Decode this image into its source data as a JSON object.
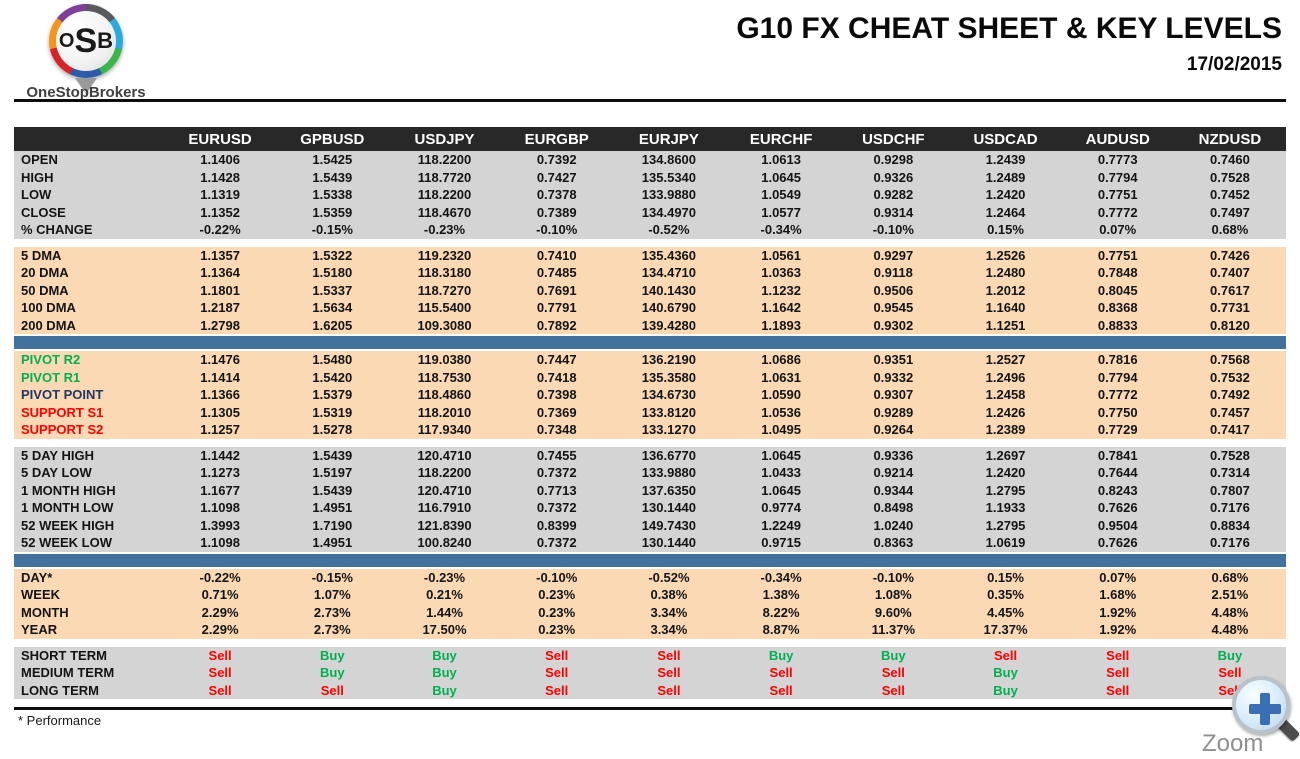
{
  "header": {
    "logo": {
      "monogram_o": "O",
      "monogram_s": "S",
      "monogram_b": "B",
      "brand": "OneStopBrokers",
      "ring_colors": [
        "#58595B",
        "#29ABE2",
        "#39B54A",
        "#2E5BA8",
        "#D92128",
        "#F7941E",
        "#7F3F98"
      ]
    },
    "title": "G10 FX CHEAT SHEET & KEY LEVELS",
    "date": "17/02/2015"
  },
  "colors": {
    "header_bg": "#282828",
    "header_text": "#ffffff",
    "gray_block": "#d4d4d4",
    "peach_block": "#fbd9b5",
    "blue_bar": "#41719c",
    "green": "#00b050",
    "navy": "#1f3864",
    "red": "#ff0000",
    "buy": "#00b050",
    "sell": "#ff0000"
  },
  "chart_data": {
    "type": "table",
    "title": "G10 FX CHEAT SHEET & KEY LEVELS",
    "columns": [
      "EURUSD",
      "GPBUSD",
      "USDJPY",
      "EURGBP",
      "EURJPY",
      "EURCHF",
      "USDCHF",
      "USDCAD",
      "AUDUSD",
      "NZDUSD"
    ],
    "sections": [
      {
        "name": "ohlc",
        "style": "gray",
        "divider_before": "none",
        "rows": [
          {
            "label": "OPEN",
            "values": [
              "1.1406",
              "1.5425",
              "118.2200",
              "0.7392",
              "134.8600",
              "1.0613",
              "0.9298",
              "1.2439",
              "0.7773",
              "0.7460"
            ]
          },
          {
            "label": "HIGH",
            "values": [
              "1.1428",
              "1.5439",
              "118.7720",
              "0.7427",
              "135.5340",
              "1.0645",
              "0.9326",
              "1.2489",
              "0.7794",
              "0.7528"
            ]
          },
          {
            "label": "LOW",
            "values": [
              "1.1319",
              "1.5338",
              "118.2200",
              "0.7378",
              "133.9880",
              "1.0549",
              "0.9282",
              "1.2420",
              "0.7751",
              "0.7452"
            ]
          },
          {
            "label": "CLOSE",
            "values": [
              "1.1352",
              "1.5359",
              "118.4670",
              "0.7389",
              "134.4970",
              "1.0577",
              "0.9314",
              "1.2464",
              "0.7772",
              "0.7497"
            ]
          },
          {
            "label": "% CHANGE",
            "values": [
              "-0.22%",
              "-0.15%",
              "-0.23%",
              "-0.10%",
              "-0.52%",
              "-0.34%",
              "-0.10%",
              "0.15%",
              "0.07%",
              "0.68%"
            ]
          }
        ]
      },
      {
        "name": "dma",
        "style": "peach",
        "divider_before": "gap",
        "rows": [
          {
            "label": "5 DMA",
            "values": [
              "1.1357",
              "1.5322",
              "119.2320",
              "0.7410",
              "135.4360",
              "1.0561",
              "0.9297",
              "1.2526",
              "0.7751",
              "0.7426"
            ]
          },
          {
            "label": "20 DMA",
            "values": [
              "1.1364",
              "1.5180",
              "118.3180",
              "0.7485",
              "134.4710",
              "1.0363",
              "0.9118",
              "1.2480",
              "0.7848",
              "0.7407"
            ]
          },
          {
            "label": "50 DMA",
            "values": [
              "1.1801",
              "1.5337",
              "118.7270",
              "0.7691",
              "140.1430",
              "1.1232",
              "0.9506",
              "1.2012",
              "0.8045",
              "0.7617"
            ]
          },
          {
            "label": "100 DMA",
            "values": [
              "1.2187",
              "1.5634",
              "115.5400",
              "0.7791",
              "140.6790",
              "1.1642",
              "0.9545",
              "1.1640",
              "0.8368",
              "0.7731"
            ]
          },
          {
            "label": "200 DMA",
            "values": [
              "1.2798",
              "1.6205",
              "109.3080",
              "0.7892",
              "139.4280",
              "1.1893",
              "0.9302",
              "1.1251",
              "0.8833",
              "0.8120"
            ]
          }
        ]
      },
      {
        "name": "pivots",
        "style": "peach",
        "divider_before": "bar",
        "label_colors": [
          "green",
          "green",
          "navy",
          "red",
          "red"
        ],
        "rows": [
          {
            "label": "PIVOT R2",
            "values": [
              "1.1476",
              "1.5480",
              "119.0380",
              "0.7447",
              "136.2190",
              "1.0686",
              "0.9351",
              "1.2527",
              "0.7816",
              "0.7568"
            ]
          },
          {
            "label": "PIVOT R1",
            "values": [
              "1.1414",
              "1.5420",
              "118.7530",
              "0.7418",
              "135.3580",
              "1.0631",
              "0.9332",
              "1.2496",
              "0.7794",
              "0.7532"
            ]
          },
          {
            "label": "PIVOT POINT",
            "values": [
              "1.1366",
              "1.5379",
              "118.4860",
              "0.7398",
              "134.6730",
              "1.0590",
              "0.9307",
              "1.2458",
              "0.7772",
              "0.7492"
            ]
          },
          {
            "label": "SUPPORT S1",
            "values": [
              "1.1305",
              "1.5319",
              "118.2010",
              "0.7369",
              "133.8120",
              "1.0536",
              "0.9289",
              "1.2426",
              "0.7750",
              "0.7457"
            ]
          },
          {
            "label": "SUPPORT S2",
            "values": [
              "1.1257",
              "1.5278",
              "117.9340",
              "0.7348",
              "133.1270",
              "1.0495",
              "0.9264",
              "1.2389",
              "0.7729",
              "0.7417"
            ]
          }
        ]
      },
      {
        "name": "ranges",
        "style": "gray",
        "divider_before": "gap",
        "rows": [
          {
            "label": "5 DAY HIGH",
            "values": [
              "1.1442",
              "1.5439",
              "120.4710",
              "0.7455",
              "136.6770",
              "1.0645",
              "0.9336",
              "1.2697",
              "0.7841",
              "0.7528"
            ]
          },
          {
            "label": "5 DAY LOW",
            "values": [
              "1.1273",
              "1.5197",
              "118.2200",
              "0.7372",
              "133.9880",
              "1.0433",
              "0.9214",
              "1.2420",
              "0.7644",
              "0.7314"
            ]
          },
          {
            "label": "1 MONTH HIGH",
            "values": [
              "1.1677",
              "1.5439",
              "120.4710",
              "0.7713",
              "137.6350",
              "1.0645",
              "0.9344",
              "1.2795",
              "0.8243",
              "0.7807"
            ]
          },
          {
            "label": "1 MONTH LOW",
            "values": [
              "1.1098",
              "1.4951",
              "116.7910",
              "0.7372",
              "130.1440",
              "0.9774",
              "0.8498",
              "1.1933",
              "0.7626",
              "0.7176"
            ]
          },
          {
            "label": "52 WEEK HIGH",
            "values": [
              "1.3993",
              "1.7190",
              "121.8390",
              "0.8399",
              "149.7430",
              "1.2249",
              "1.0240",
              "1.2795",
              "0.9504",
              "0.8834"
            ]
          },
          {
            "label": "52 WEEK LOW",
            "values": [
              "1.1098",
              "1.4951",
              "100.8240",
              "0.7372",
              "130.1440",
              "0.9715",
              "0.8363",
              "1.0619",
              "0.7626",
              "0.7176"
            ]
          }
        ]
      },
      {
        "name": "performance",
        "style": "peach",
        "divider_before": "bar",
        "rows": [
          {
            "label": "DAY*",
            "values": [
              "-0.22%",
              "-0.15%",
              "-0.23%",
              "-0.10%",
              "-0.52%",
              "-0.34%",
              "-0.10%",
              "0.15%",
              "0.07%",
              "0.68%"
            ]
          },
          {
            "label": "WEEK",
            "values": [
              "0.71%",
              "1.07%",
              "0.21%",
              "0.23%",
              "0.38%",
              "1.38%",
              "1.08%",
              "0.35%",
              "1.68%",
              "2.51%"
            ]
          },
          {
            "label": "MONTH",
            "values": [
              "2.29%",
              "2.73%",
              "1.44%",
              "0.23%",
              "3.34%",
              "8.22%",
              "9.60%",
              "4.45%",
              "1.92%",
              "4.48%"
            ]
          },
          {
            "label": "YEAR",
            "values": [
              "2.29%",
              "2.73%",
              "17.50%",
              "0.23%",
              "3.34%",
              "8.87%",
              "11.37%",
              "17.37%",
              "1.92%",
              "4.48%"
            ]
          }
        ]
      },
      {
        "name": "signals",
        "style": "gray",
        "divider_before": "gap",
        "signals": true,
        "rows": [
          {
            "label": "SHORT TERM",
            "values": [
              "Sell",
              "Buy",
              "Buy",
              "Sell",
              "Sell",
              "Buy",
              "Buy",
              "Sell",
              "Sell",
              "Buy"
            ]
          },
          {
            "label": "MEDIUM TERM",
            "values": [
              "Sell",
              "Buy",
              "Buy",
              "Sell",
              "Sell",
              "Sell",
              "Sell",
              "Buy",
              "Sell",
              "Sell"
            ]
          },
          {
            "label": "LONG TERM",
            "values": [
              "Sell",
              "Sell",
              "Buy",
              "Sell",
              "Sell",
              "Sell",
              "Sell",
              "Buy",
              "Sell",
              "Sell"
            ]
          }
        ]
      }
    ]
  },
  "footer": {
    "note": "* Performance",
    "zoom_label": "Zoom"
  }
}
